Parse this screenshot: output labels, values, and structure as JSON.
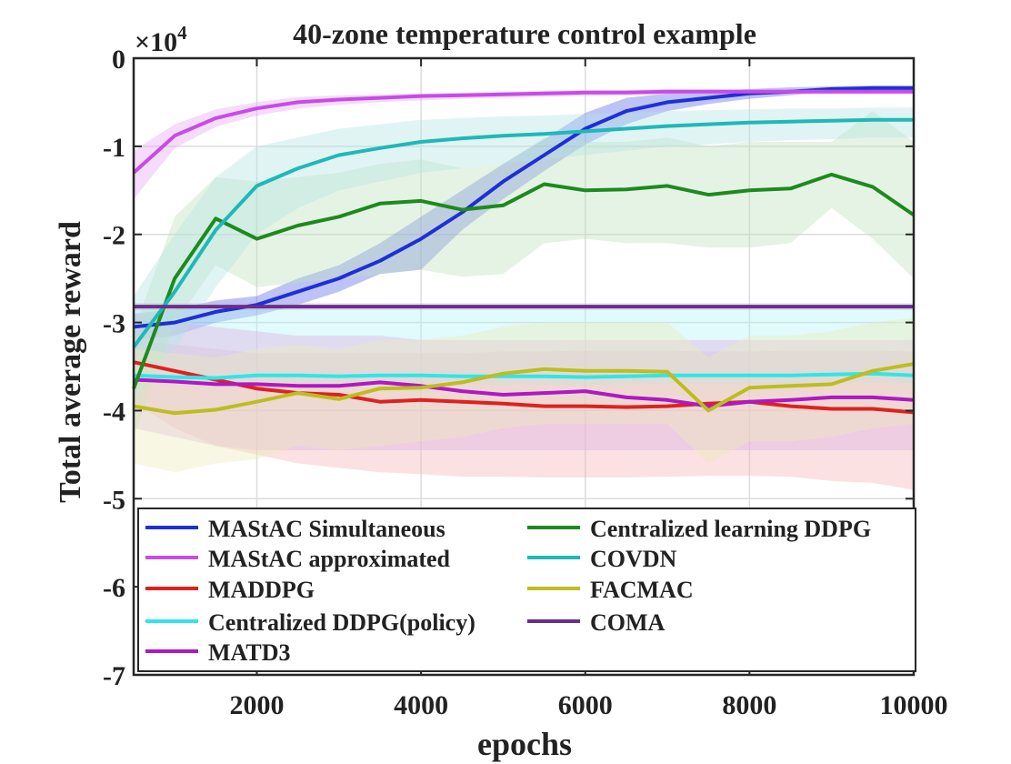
{
  "chart_data": {
    "type": "line",
    "title": "40-zone temperature control example",
    "xlabel": "epochs",
    "ylabel": "Total average reward",
    "y_multiplier_label": "×10",
    "y_multiplier_exponent": "4",
    "xlim": [
      500,
      10000
    ],
    "ylim": [
      -7,
      0
    ],
    "xticks": [
      2000,
      4000,
      6000,
      8000,
      10000
    ],
    "xtick_labels": [
      "2000",
      "4000",
      "6000",
      "8000",
      "10000"
    ],
    "yticks": [
      0,
      -1,
      -2,
      -3,
      -4,
      -5,
      -6,
      -7
    ],
    "ytick_labels": [
      "0",
      "-1",
      "-2",
      "-3",
      "-4",
      "-5",
      "-6",
      "-7"
    ],
    "grid": true,
    "legend_position": "bottom, two columns",
    "series": [
      {
        "name": "MAStAC Simultaneous",
        "color": "#1f2fd6",
        "band_color": "#5a6ae6",
        "x": [
          500,
          1000,
          1500,
          2000,
          2500,
          3000,
          3500,
          4000,
          4500,
          5000,
          5500,
          6000,
          6500,
          7000,
          7500,
          8000,
          8500,
          9000,
          9500,
          10000
        ],
        "y": [
          -3.05,
          -3.0,
          -2.88,
          -2.8,
          -2.65,
          -2.5,
          -2.3,
          -2.05,
          -1.75,
          -1.4,
          -1.1,
          -0.8,
          -0.6,
          -0.5,
          -0.45,
          -0.4,
          -0.38,
          -0.35,
          -0.34,
          -0.34
        ],
        "lower": [
          -3.2,
          -3.15,
          -3.0,
          -2.92,
          -2.8,
          -2.65,
          -2.45,
          -2.4,
          -1.95,
          -1.6,
          -1.28,
          -0.98,
          -0.75,
          -0.6,
          -0.52,
          -0.46,
          -0.42,
          -0.38,
          -0.37,
          -0.37
        ],
        "upper": [
          -2.9,
          -2.85,
          -2.75,
          -2.7,
          -2.5,
          -2.35,
          -2.1,
          -1.8,
          -1.5,
          -1.2,
          -0.92,
          -0.62,
          -0.45,
          -0.4,
          -0.38,
          -0.35,
          -0.33,
          -0.32,
          -0.31,
          -0.31
        ]
      },
      {
        "name": "MAStAC approximated",
        "color": "#c84be8",
        "band_color": "#e3a7f2",
        "x": [
          500,
          1000,
          1500,
          2000,
          2500,
          3000,
          3500,
          4000,
          4500,
          5000,
          5500,
          6000,
          6500,
          7000,
          7500,
          8000,
          8500,
          9000,
          9500,
          10000
        ],
        "y": [
          -1.3,
          -0.88,
          -0.68,
          -0.57,
          -0.5,
          -0.47,
          -0.45,
          -0.43,
          -0.42,
          -0.41,
          -0.4,
          -0.39,
          -0.39,
          -0.38,
          -0.38,
          -0.38,
          -0.38,
          -0.38,
          -0.38,
          -0.38
        ],
        "lower": [
          -1.6,
          -1.02,
          -0.78,
          -0.65,
          -0.57,
          -0.53,
          -0.5,
          -0.48,
          -0.46,
          -0.45,
          -0.44,
          -0.43,
          -0.42,
          -0.41,
          -0.41,
          -0.41,
          -0.41,
          -0.41,
          -0.41,
          -0.41
        ],
        "upper": [
          -1.05,
          -0.75,
          -0.58,
          -0.5,
          -0.44,
          -0.42,
          -0.41,
          -0.4,
          -0.39,
          -0.38,
          -0.37,
          -0.36,
          -0.36,
          -0.35,
          -0.35,
          -0.35,
          -0.35,
          -0.35,
          -0.35,
          -0.35
        ]
      },
      {
        "name": "MADDPG",
        "color": "#e02020",
        "band_color": "#f5b5b5",
        "x": [
          500,
          1000,
          1500,
          2000,
          2500,
          3000,
          3500,
          4000,
          4500,
          5000,
          5500,
          6000,
          6500,
          7000,
          7500,
          8000,
          8500,
          9000,
          9500,
          10000
        ],
        "y": [
          -3.45,
          -3.55,
          -3.65,
          -3.75,
          -3.8,
          -3.82,
          -3.9,
          -3.88,
          -3.9,
          -3.92,
          -3.95,
          -3.95,
          -3.96,
          -3.95,
          -3.92,
          -3.9,
          -3.95,
          -3.98,
          -3.98,
          -4.02
        ],
        "lower": [
          -3.9,
          -4.2,
          -4.4,
          -4.5,
          -4.6,
          -4.65,
          -4.7,
          -4.72,
          -4.75,
          -4.75,
          -4.76,
          -4.76,
          -4.76,
          -4.75,
          -4.74,
          -4.74,
          -4.75,
          -4.8,
          -4.82,
          -4.9
        ],
        "upper": [
          -3.2,
          -3.25,
          -3.3,
          -3.35,
          -3.35,
          -3.35,
          -3.35,
          -3.35,
          -3.35,
          -3.33,
          -3.33,
          -3.32,
          -3.32,
          -3.32,
          -3.33,
          -3.33,
          -3.32,
          -3.32,
          -3.32,
          -3.33
        ]
      },
      {
        "name": "Centralized DDPG(policy)",
        "color": "#2ee6ea",
        "band_color": "#b4f3f5",
        "x": [
          500,
          1000,
          1500,
          2000,
          2500,
          3000,
          3500,
          4000,
          4500,
          5000,
          5500,
          6000,
          6500,
          7000,
          7500,
          8000,
          8500,
          9000,
          9500,
          10000
        ],
        "y": [
          -3.6,
          -3.62,
          -3.63,
          -3.6,
          -3.6,
          -3.61,
          -3.6,
          -3.6,
          -3.61,
          -3.61,
          -3.61,
          -3.62,
          -3.61,
          -3.6,
          -3.6,
          -3.6,
          -3.6,
          -3.59,
          -3.58,
          -3.6
        ],
        "lower": [
          -3.7,
          -3.72,
          -3.73,
          -3.7,
          -3.7,
          -3.71,
          -3.7,
          -3.7,
          -3.71,
          -3.71,
          -3.71,
          -3.72,
          -3.71,
          -3.7,
          -3.7,
          -3.7,
          -3.7,
          -3.69,
          -3.68,
          -3.7
        ],
        "upper": [
          -2.78,
          -2.8,
          -2.8,
          -2.8,
          -2.8,
          -2.8,
          -2.8,
          -2.8,
          -2.8,
          -2.8,
          -2.8,
          -2.8,
          -2.8,
          -2.8,
          -2.8,
          -2.8,
          -2.8,
          -2.8,
          -2.8,
          -2.8
        ]
      },
      {
        "name": "MATD3",
        "color": "#b117c4",
        "band_color": "#dcb0e6",
        "x": [
          500,
          1000,
          1500,
          2000,
          2500,
          3000,
          3500,
          4000,
          4500,
          5000,
          5500,
          6000,
          6500,
          7000,
          7500,
          8000,
          8500,
          9000,
          9500,
          10000
        ],
        "y": [
          -3.65,
          -3.67,
          -3.7,
          -3.7,
          -3.72,
          -3.72,
          -3.68,
          -3.72,
          -3.78,
          -3.82,
          -3.8,
          -3.78,
          -3.85,
          -3.88,
          -3.95,
          -3.9,
          -3.88,
          -3.85,
          -3.85,
          -3.88
        ],
        "lower": [
          -4.2,
          -4.3,
          -4.4,
          -4.45,
          -4.45,
          -4.45,
          -4.45,
          -4.45,
          -4.45,
          -4.45,
          -4.45,
          -4.45,
          -4.45,
          -4.45,
          -4.45,
          -4.45,
          -4.45,
          -4.45,
          -4.45,
          -4.45
        ],
        "upper": [
          -2.9,
          -3.0,
          -3.05,
          -3.1,
          -3.15,
          -3.15,
          -3.15,
          -3.2,
          -3.2,
          -3.2,
          -3.2,
          -3.2,
          -3.2,
          -3.2,
          -3.2,
          -3.2,
          -3.2,
          -3.2,
          -3.2,
          -3.2
        ]
      },
      {
        "name": "Centralized learning DDPG",
        "color": "#1d8a1d",
        "band_color": "#bfe0bf",
        "x": [
          500,
          1000,
          1500,
          2000,
          2500,
          3000,
          3500,
          4000,
          4500,
          5000,
          5500,
          6000,
          6500,
          7000,
          7500,
          8000,
          8500,
          9000,
          9500,
          10000
        ],
        "y": [
          -3.75,
          -2.5,
          -1.82,
          -2.05,
          -1.9,
          -1.8,
          -1.65,
          -1.62,
          -1.72,
          -1.67,
          -1.43,
          -1.5,
          -1.49,
          -1.45,
          -1.55,
          -1.5,
          -1.48,
          -1.32,
          -1.46,
          -1.78
        ],
        "lower": [
          -4.3,
          -3.0,
          -2.35,
          -2.6,
          -2.55,
          -2.5,
          -2.45,
          -2.4,
          -2.48,
          -2.45,
          -2.1,
          -2.05,
          -2.1,
          -2.1,
          -2.15,
          -2.15,
          -2.1,
          -1.7,
          -2.05,
          -2.5
        ],
        "upper": [
          -3.1,
          -1.8,
          -1.35,
          -1.4,
          -1.35,
          -1.3,
          -1.2,
          -1.15,
          -1.25,
          -1.2,
          -0.9,
          -0.95,
          -0.95,
          -0.9,
          -1.0,
          -0.95,
          -0.95,
          -0.95,
          -0.6,
          -0.95
        ]
      },
      {
        "name": "COVDN",
        "color": "#1fb8b8",
        "band_color": "#b3e3e3",
        "x": [
          500,
          1000,
          1500,
          2000,
          2500,
          3000,
          3500,
          4000,
          4500,
          5000,
          5500,
          6000,
          6500,
          7000,
          7500,
          8000,
          8500,
          9000,
          9500,
          10000
        ],
        "y": [
          -3.28,
          -2.65,
          -1.95,
          -1.45,
          -1.25,
          -1.1,
          -1.02,
          -0.95,
          -0.91,
          -0.88,
          -0.86,
          -0.83,
          -0.8,
          -0.77,
          -0.75,
          -0.73,
          -0.72,
          -0.71,
          -0.7,
          -0.7
        ],
        "lower": [
          -3.9,
          -3.3,
          -2.6,
          -2.0,
          -1.7,
          -1.5,
          -1.4,
          -1.3,
          -1.25,
          -1.2,
          -1.15,
          -1.1,
          -1.05,
          -1.0,
          -0.98,
          -0.95,
          -0.93,
          -0.92,
          -0.9,
          -0.9
        ],
        "upper": [
          -2.7,
          -2.0,
          -1.35,
          -1.0,
          -0.9,
          -0.8,
          -0.75,
          -0.7,
          -0.68,
          -0.66,
          -0.65,
          -0.63,
          -0.62,
          -0.6,
          -0.59,
          -0.58,
          -0.57,
          -0.57,
          -0.56,
          -0.56
        ]
      },
      {
        "name": "FACMAC",
        "color": "#bdbd1e",
        "band_color": "#ecebb8",
        "x": [
          500,
          1000,
          1500,
          2000,
          2500,
          3000,
          3500,
          4000,
          4500,
          5000,
          5500,
          6000,
          6500,
          7000,
          7500,
          8000,
          8500,
          9000,
          9500,
          10000
        ],
        "y": [
          -3.95,
          -4.03,
          -3.99,
          -3.9,
          -3.8,
          -3.87,
          -3.75,
          -3.74,
          -3.68,
          -3.58,
          -3.53,
          -3.55,
          -3.55,
          -3.56,
          -4.0,
          -3.74,
          -3.72,
          -3.7,
          -3.55,
          -3.47
        ],
        "lower": [
          -4.6,
          -4.7,
          -4.6,
          -4.55,
          -4.4,
          -4.45,
          -4.4,
          -4.35,
          -4.3,
          -4.2,
          -4.15,
          -4.15,
          -4.15,
          -4.15,
          -4.6,
          -4.35,
          -4.35,
          -4.3,
          -4.2,
          -4.15
        ],
        "upper": [
          -3.3,
          -3.35,
          -3.4,
          -3.3,
          -3.25,
          -3.3,
          -3.2,
          -3.2,
          -3.15,
          -3.05,
          -3.0,
          -3.0,
          -3.0,
          -3.0,
          -3.4,
          -3.15,
          -3.15,
          -3.1,
          -3.0,
          -2.95
        ]
      },
      {
        "name": "COMA",
        "color": "#6b2d8c",
        "band_color": "#cdb6db",
        "x": [
          500,
          10000
        ],
        "y": [
          -2.82,
          -2.82
        ],
        "lower": [
          -2.86,
          -2.86
        ],
        "upper": [
          -2.78,
          -2.78
        ]
      }
    ]
  }
}
